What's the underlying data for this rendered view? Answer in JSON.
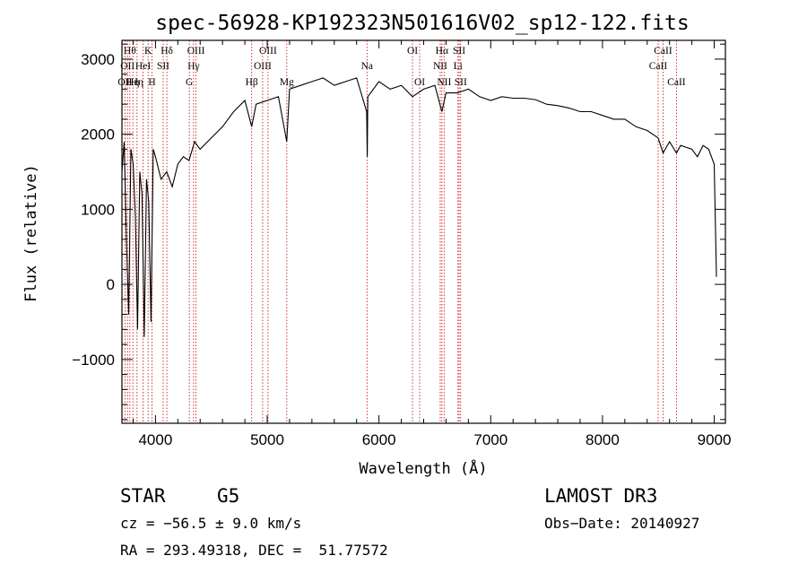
{
  "chart_data": {
    "type": "line",
    "title": "spec-56928-KP192323N501616V02_sp12-122.fits",
    "xlabel": "Wavelength (Å)",
    "ylabel": "Flux (relative)",
    "xlim": [
      3700,
      9100
    ],
    "ylim": [
      -1850,
      3250
    ],
    "xticks": [
      4000,
      5000,
      6000,
      7000,
      8000,
      9000
    ],
    "yticks": [
      -1000,
      0,
      1000,
      2000,
      3000
    ],
    "xtick_labels": [
      "4000",
      "5000",
      "6000",
      "7000",
      "8000",
      "9000"
    ],
    "ytick_labels": [
      "−1000",
      "0",
      "1000",
      "2000",
      "3000"
    ],
    "grid": false,
    "series": [
      {
        "name": "flux",
        "x": [
          3700,
          3720,
          3740,
          3760,
          3780,
          3800,
          3820,
          3840,
          3860,
          3880,
          3900,
          3920,
          3940,
          3960,
          3980,
          4000,
          4050,
          4100,
          4150,
          4200,
          4250,
          4300,
          4350,
          4400,
          4500,
          4600,
          4700,
          4800,
          4861,
          4900,
          5000,
          5100,
          5175,
          5200,
          5300,
          5400,
          5500,
          5600,
          5700,
          5800,
          5890,
          5895,
          5900,
          6000,
          6100,
          6200,
          6300,
          6400,
          6500,
          6563,
          6600,
          6700,
          6800,
          6900,
          7000,
          7100,
          7200,
          7300,
          7400,
          7500,
          7600,
          7700,
          7800,
          7900,
          8000,
          8100,
          8200,
          8300,
          8400,
          8498,
          8542,
          8600,
          8662,
          8700,
          8800,
          8850,
          8900,
          8950,
          9000,
          9020
        ],
        "values": [
          1500,
          1900,
          600,
          -400,
          1800,
          1600,
          900,
          -600,
          1500,
          1200,
          -700,
          1400,
          1100,
          -500,
          1800,
          1700,
          1400,
          1500,
          1300,
          1600,
          1700,
          1650,
          1900,
          1800,
          1950,
          2100,
          2300,
          2450,
          2100,
          2400,
          2450,
          2500,
          1900,
          2600,
          2650,
          2700,
          2750,
          2650,
          2700,
          2750,
          2300,
          1700,
          2500,
          2700,
          2600,
          2650,
          2500,
          2600,
          2650,
          2300,
          2550,
          2550,
          2600,
          2500,
          2450,
          2500,
          2480,
          2480,
          2460,
          2400,
          2380,
          2350,
          2300,
          2300,
          2250,
          2200,
          2200,
          2100,
          2050,
          1950,
          1750,
          1900,
          1750,
          1850,
          1800,
          1700,
          1850,
          1800,
          1600,
          100
        ]
      }
    ],
    "spectral_lines": [
      {
        "wl": 3727,
        "label": "OII",
        "row": 2
      },
      {
        "wl": 3750,
        "label": "OII",
        "row": 1
      },
      {
        "wl": 3771,
        "label": "Hθ",
        "row": 0
      },
      {
        "wl": 3798,
        "label": "Hη",
        "row": 2
      },
      {
        "wl": 3835,
        "label": "Hη",
        "row": 2
      },
      {
        "wl": 3889,
        "label": "HeI",
        "row": 1
      },
      {
        "wl": 3934,
        "label": "K",
        "row": 0
      },
      {
        "wl": 3969,
        "label": "H",
        "row": 2
      },
      {
        "wl": 4069,
        "label": "SII",
        "row": 1
      },
      {
        "wl": 4102,
        "label": "Hδ",
        "row": 0
      },
      {
        "wl": 4303,
        "label": "G",
        "row": 2
      },
      {
        "wl": 4341,
        "label": "Hγ",
        "row": 1
      },
      {
        "wl": 4363,
        "label": "OIII",
        "row": 0
      },
      {
        "wl": 4861,
        "label": "Hβ",
        "row": 2
      },
      {
        "wl": 4959,
        "label": "OIII",
        "row": 1
      },
      {
        "wl": 5007,
        "label": "OIII",
        "row": 0
      },
      {
        "wl": 5175,
        "label": "Mg",
        "row": 2
      },
      {
        "wl": 5893,
        "label": "Na",
        "row": 1
      },
      {
        "wl": 6300,
        "label": "OI",
        "row": 0
      },
      {
        "wl": 6364,
        "label": "OI",
        "row": 2
      },
      {
        "wl": 6548,
        "label": "NII",
        "row": 1
      },
      {
        "wl": 6563,
        "label": "Hα",
        "row": 0
      },
      {
        "wl": 6583,
        "label": "NII",
        "row": 2
      },
      {
        "wl": 6707,
        "label": "Li",
        "row": 1
      },
      {
        "wl": 6717,
        "label": "SII",
        "row": 0
      },
      {
        "wl": 6731,
        "label": "SII",
        "row": 2
      },
      {
        "wl": 8498,
        "label": "CaII",
        "row": 1
      },
      {
        "wl": 8542,
        "label": "CaII",
        "row": 0
      },
      {
        "wl": 8662,
        "label": "CaII",
        "row": 2
      }
    ]
  },
  "info": {
    "object_class": "STAR",
    "subclass": "G5",
    "survey": "LAMOST DR3",
    "redshift": "cz = −56.5 ± 9.0 km/s",
    "obs_date": "Obs−Date: 20140927",
    "coords": "RA = 293.49318, DEC =  51.77572"
  },
  "colors": {
    "line": "#000000",
    "marker": "#cc0000",
    "axes": "#000000"
  }
}
